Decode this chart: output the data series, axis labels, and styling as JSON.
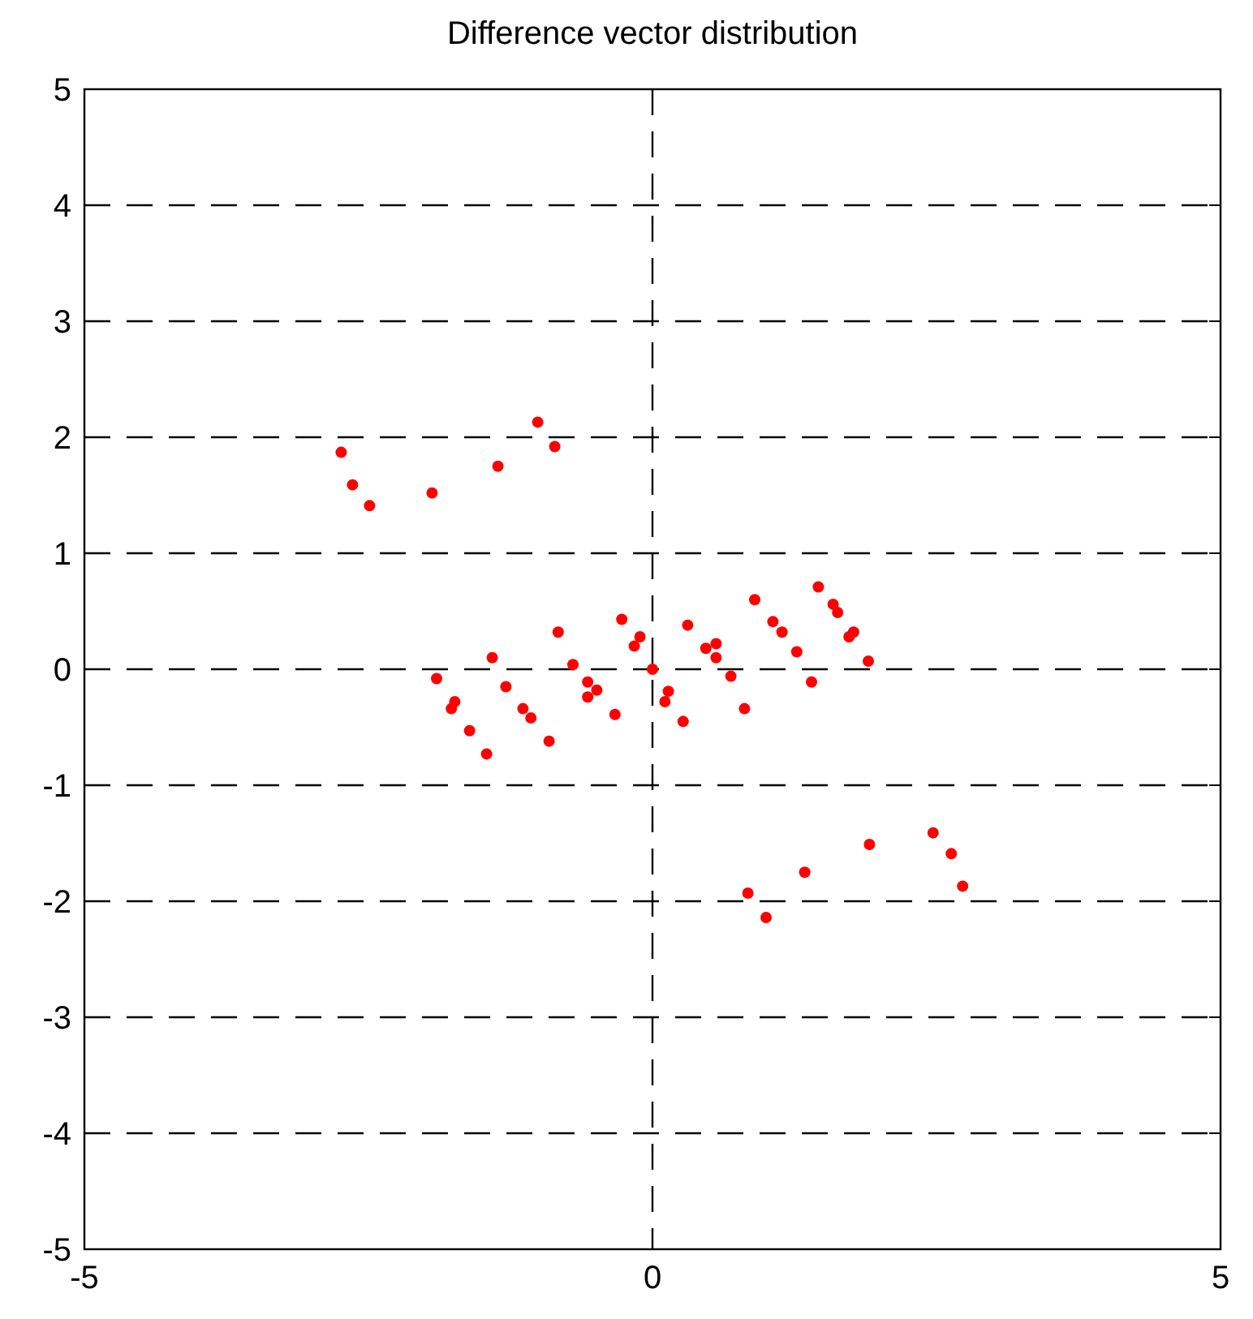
{
  "chart_data": {
    "type": "scatter",
    "title": "Difference vector distribution",
    "xlim": [
      -5,
      5
    ],
    "ylim": [
      -5,
      5
    ],
    "xticks": [
      -5,
      0,
      5
    ],
    "yticks": [
      -5,
      -4,
      -3,
      -2,
      -1,
      0,
      1,
      2,
      3,
      4,
      5
    ],
    "grid": true,
    "marker": "circle",
    "series": [
      {
        "color": "#ff0000",
        "x": [
          -2.74,
          -2.64,
          -2.49,
          -1.94,
          -1.36,
          -1.01,
          -0.86,
          0.84,
          1.0,
          1.34,
          1.91,
          2.47,
          2.63,
          2.73,
          -1.9,
          -1.74,
          -1.77,
          -1.61,
          -1.46,
          -1.41,
          -1.29,
          -1.14,
          -1.07,
          -0.91,
          -0.83,
          -0.7,
          -0.57,
          -0.49,
          -0.57,
          -0.33,
          -0.27,
          -0.11,
          -0.16,
          0,
          0.14,
          0.11,
          0.27,
          0.31,
          0.47,
          0.56,
          0.56,
          0.69,
          0.81,
          0.9,
          1.06,
          1.14,
          1.27,
          1.4,
          1.46,
          1.59,
          1.63,
          1.77,
          1.73,
          1.9
        ],
        "values": [
          1.87,
          1.59,
          1.41,
          1.52,
          1.75,
          2.13,
          1.92,
          -1.93,
          -2.14,
          -1.75,
          -1.51,
          -1.41,
          -1.59,
          -1.87,
          -0.08,
          -0.28,
          -0.34,
          -0.53,
          -0.73,
          0.1,
          -0.15,
          -0.34,
          -0.42,
          -0.62,
          0.32,
          0.04,
          -0.11,
          -0.18,
          -0.24,
          -0.39,
          0.43,
          0.28,
          0.2,
          0,
          -0.19,
          -0.28,
          -0.45,
          0.38,
          0.18,
          0.22,
          0.1,
          -0.06,
          -0.34,
          0.6,
          0.41,
          0.32,
          0.15,
          -0.11,
          0.71,
          0.56,
          0.49,
          0.32,
          0.28,
          0.07
        ]
      }
    ]
  }
}
